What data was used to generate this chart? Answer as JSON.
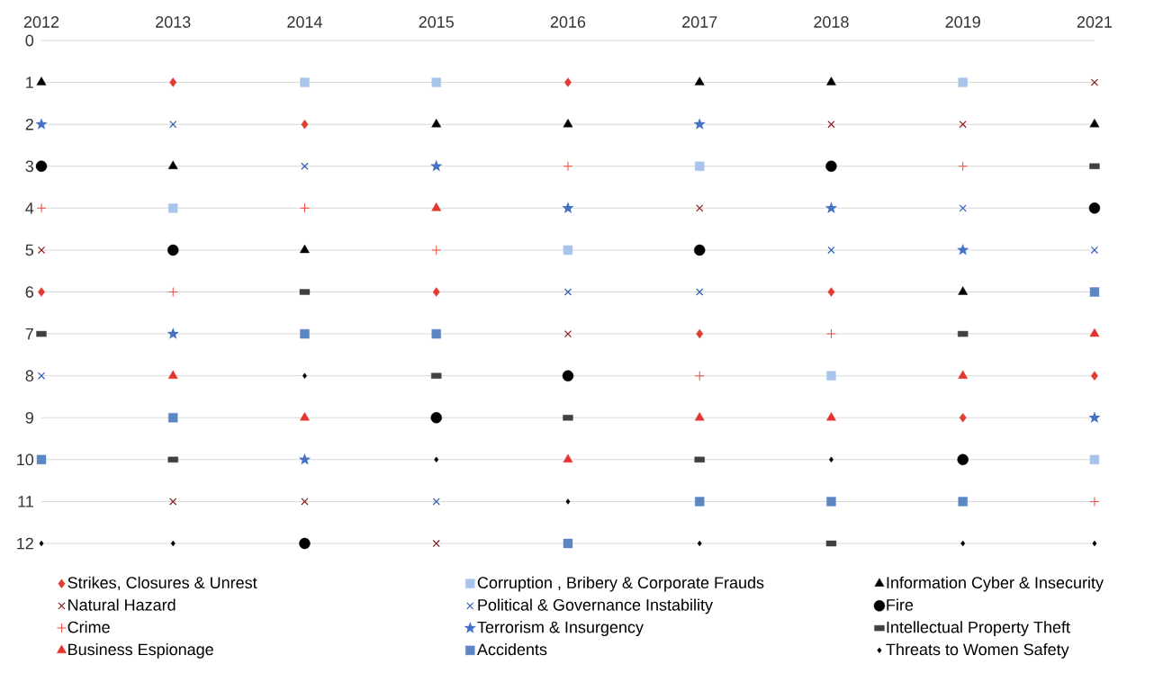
{
  "chart_data": {
    "type": "scatter",
    "categories": [
      "2012",
      "2013",
      "2014",
      "2015",
      "2016",
      "2017",
      "2018",
      "2019",
      "2021"
    ],
    "ylim": [
      12,
      0
    ],
    "yticks": [
      0,
      1,
      2,
      3,
      4,
      5,
      6,
      7,
      8,
      9,
      10,
      11,
      12
    ],
    "grid": "y",
    "legend": "bottom",
    "series": [
      {
        "name": "Strikes, Closures & Unrest",
        "color": "#e03c31",
        "marker": "diamond",
        "values": [
          6,
          1,
          2,
          6,
          1,
          7,
          6,
          9,
          8
        ]
      },
      {
        "name": "Corruption , Bribery & Corporate Frauds",
        "color": "#a9c4eb",
        "marker": "square",
        "values": [
          null,
          4,
          1,
          1,
          5,
          3,
          8,
          1,
          10
        ]
      },
      {
        "name": "Information Cyber & Insecurity",
        "color": "#000000",
        "marker": "triangle",
        "values": [
          1,
          3,
          5,
          2,
          2,
          1,
          1,
          6,
          2
        ]
      },
      {
        "name": "Natural Hazard",
        "color": "#8b1a1a",
        "marker": "cross",
        "values": [
          5,
          11,
          11,
          12,
          7,
          4,
          2,
          2,
          1
        ]
      },
      {
        "name": "Political & Governance Instability",
        "color": "#2e5fb7",
        "marker": "cross",
        "values": [
          8,
          2,
          3,
          11,
          6,
          6,
          5,
          4,
          5
        ]
      },
      {
        "name": "Fire",
        "color": "#000000",
        "marker": "circle",
        "values": [
          3,
          5,
          12,
          9,
          8,
          5,
          3,
          10,
          4
        ]
      },
      {
        "name": "Crime",
        "color": "#ee4b3b",
        "marker": "cross",
        "values": [
          4,
          6,
          4,
          5,
          3,
          8,
          7,
          3,
          11
        ]
      },
      {
        "name": "Terrorism & Insurgency",
        "color": "#4472c4",
        "marker": "star",
        "values": [
          2,
          7,
          10,
          3,
          4,
          2,
          4,
          5,
          9
        ]
      },
      {
        "name": "Intellectual Property Theft",
        "color": "#404040",
        "marker": "square",
        "values": [
          7,
          10,
          6,
          8,
          9,
          10,
          12,
          7,
          3
        ]
      },
      {
        "name": "Business Espionage",
        "color": "#e3342f",
        "marker": "triangle",
        "values": [
          null,
          8,
          9,
          4,
          10,
          9,
          9,
          8,
          7
        ]
      },
      {
        "name": "Accidents",
        "color": "#5b87c5",
        "marker": "square",
        "values": [
          10,
          9,
          7,
          7,
          12,
          11,
          11,
          11,
          6
        ]
      },
      {
        "name": "Threats to Women Safety",
        "color": "#000000",
        "marker": "diamond",
        "values": [
          12,
          12,
          8,
          10,
          11,
          12,
          10,
          12,
          12
        ]
      }
    ]
  }
}
